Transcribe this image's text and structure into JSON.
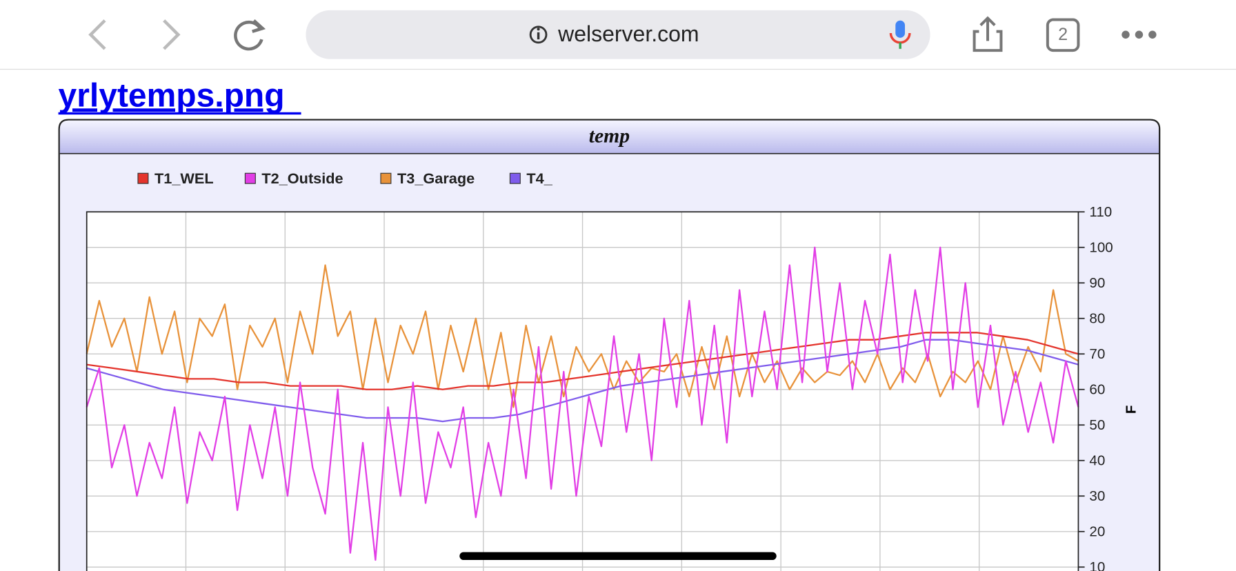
{
  "browser": {
    "url": "welserver.com",
    "tab_count": "2"
  },
  "link": "yrlytemps.png",
  "chart_data": {
    "type": "line",
    "title": "temp",
    "y_label": "F",
    "ylim": [
      10,
      110
    ],
    "yticks": [
      10,
      20,
      30,
      40,
      50,
      60,
      70,
      80,
      90,
      100,
      110
    ],
    "grid": true,
    "series": [
      {
        "name": "T1_WEL",
        "color": "#e4342c",
        "values": [
          67,
          66,
          65,
          64,
          63,
          63,
          62,
          62,
          61,
          61,
          61,
          60,
          60,
          61,
          60,
          61,
          61,
          62,
          62,
          63,
          64,
          65,
          66,
          67,
          68,
          69,
          70,
          71,
          72,
          73,
          74,
          74,
          75,
          76,
          76,
          76,
          75,
          74,
          72,
          70
        ]
      },
      {
        "name": "T2_Outside",
        "color": "#e23ee6",
        "values": [
          55,
          66,
          38,
          50,
          30,
          45,
          35,
          55,
          28,
          48,
          40,
          58,
          26,
          50,
          35,
          55,
          30,
          62,
          38,
          25,
          60,
          14,
          45,
          12,
          55,
          30,
          62,
          28,
          48,
          38,
          55,
          24,
          45,
          30,
          60,
          35,
          72,
          32,
          65,
          30,
          58,
          44,
          75,
          48,
          70,
          40,
          80,
          55,
          85,
          50,
          78,
          45,
          88,
          58,
          82,
          60,
          95,
          62,
          100,
          65,
          90,
          60,
          85,
          70,
          98,
          62,
          88,
          68,
          100,
          60,
          90,
          55,
          78,
          50,
          65,
          48,
          62,
          45,
          68,
          55
        ]
      },
      {
        "name": "T3_Garage",
        "color": "#e8923a",
        "values": [
          70,
          85,
          72,
          80,
          65,
          86,
          70,
          82,
          62,
          80,
          75,
          84,
          60,
          78,
          72,
          80,
          62,
          82,
          70,
          95,
          75,
          82,
          60,
          80,
          62,
          78,
          70,
          82,
          60,
          78,
          65,
          80,
          60,
          76,
          55,
          78,
          62,
          75,
          58,
          72,
          65,
          70,
          60,
          68,
          62,
          66,
          65,
          70,
          58,
          72,
          60,
          75,
          58,
          70,
          62,
          68,
          60,
          66,
          62,
          65,
          64,
          68,
          62,
          70,
          60,
          66,
          62,
          70,
          58,
          65,
          62,
          68,
          60,
          75,
          62,
          72,
          65,
          88,
          70,
          68
        ]
      },
      {
        "name": "T4_",
        "color": "#7f5cec",
        "values": [
          66,
          64,
          62,
          60,
          59,
          58,
          57,
          56,
          55,
          54,
          53,
          52,
          52,
          52,
          51,
          52,
          52,
          53,
          55,
          57,
          59,
          61,
          62,
          63,
          64,
          65,
          66,
          67,
          68,
          69,
          70,
          71,
          72,
          74,
          74,
          73,
          72,
          71,
          69,
          67
        ]
      }
    ]
  }
}
